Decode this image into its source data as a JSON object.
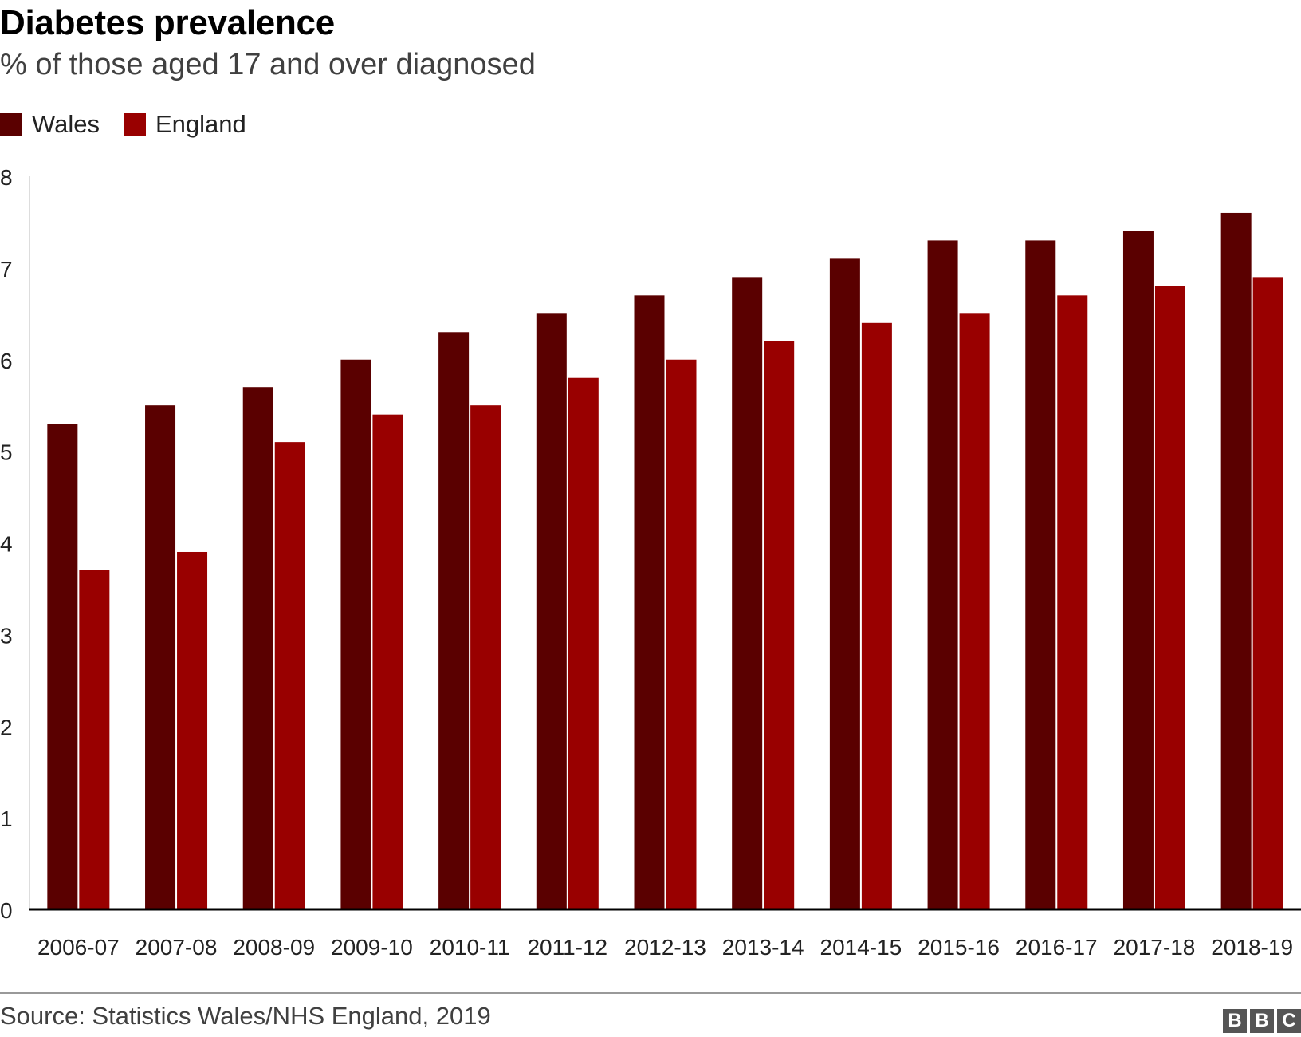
{
  "title": "Diabetes prevalence",
  "subtitle": "% of those aged 17 and over diagnosed",
  "source": "Source: Statistics Wales/NHS England, 2019",
  "logo": [
    "B",
    "B",
    "C"
  ],
  "colors": {
    "wales": "#5a0000",
    "england": "#990000",
    "axis": "#000000",
    "tick_text": "#222222"
  },
  "chart_data": {
    "type": "bar",
    "title": "Diabetes prevalence",
    "subtitle": "% of those aged 17 and over diagnosed",
    "xlabel": "",
    "ylabel": "",
    "ylim": [
      0,
      8
    ],
    "yticks": [
      0,
      1,
      2,
      3,
      4,
      5,
      6,
      7,
      8
    ],
    "grid": false,
    "legend_position": "top-left",
    "categories": [
      "2006-07",
      "2007-08",
      "2008-09",
      "2009-10",
      "2010-11",
      "2011-12",
      "2012-13",
      "2013-14",
      "2014-15",
      "2015-16",
      "2016-17",
      "2017-18",
      "2018-19"
    ],
    "series": [
      {
        "name": "Wales",
        "color": "#5a0000",
        "values": [
          5.3,
          5.5,
          5.7,
          6.0,
          6.3,
          6.5,
          6.7,
          6.9,
          7.1,
          7.3,
          7.3,
          7.4,
          7.6
        ]
      },
      {
        "name": "England",
        "color": "#990000",
        "values": [
          3.7,
          3.9,
          5.1,
          5.4,
          5.5,
          5.8,
          6.0,
          6.2,
          6.4,
          6.5,
          6.7,
          6.8,
          6.9
        ]
      }
    ]
  }
}
